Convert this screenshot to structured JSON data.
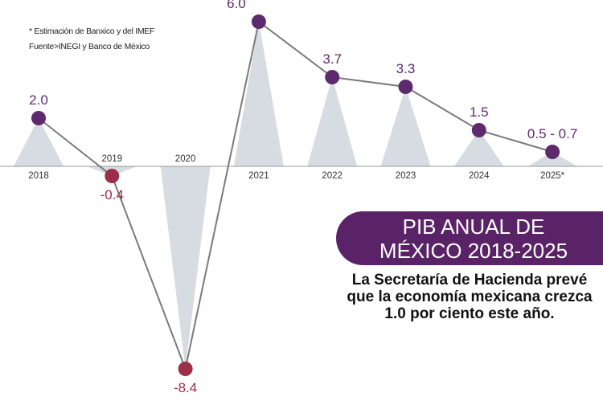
{
  "notes": {
    "estimate": "* Estimación de Banxico y del IMEF",
    "source": "Fuente>INEGI y Banco de México"
  },
  "banner": {
    "line1": "PIB ANUAL DE",
    "line2": "MÉXICO 2018-2025"
  },
  "subtitle": {
    "line1": "La Secretaría de Hacienda prevé",
    "line2": "que la economía mexicana crezca",
    "line3": "1.0 por ciento este año."
  },
  "colors": {
    "positive": "#5e2a6e",
    "negative": "#9c2f4a",
    "triangle": "#d6dce1",
    "line": "#7a7a7a",
    "axis": "#999999"
  },
  "chart_data": {
    "type": "line",
    "title": "PIB ANUAL DE MÉXICO 2018-2025",
    "categories": [
      "2018",
      "2019",
      "2020",
      "2021",
      "2022",
      "2023",
      "2024",
      "2025*"
    ],
    "values": [
      2.0,
      -0.4,
      -8.4,
      6.0,
      3.7,
      3.3,
      1.5,
      0.6
    ],
    "labels": [
      "2.0",
      "-0.4",
      "-8.4",
      "6.0",
      "3.7",
      "3.3",
      "1.5",
      "0.5 - 0.7"
    ],
    "ylim": [
      -8.4,
      6.0
    ],
    "xlabel": "",
    "ylabel": ""
  }
}
